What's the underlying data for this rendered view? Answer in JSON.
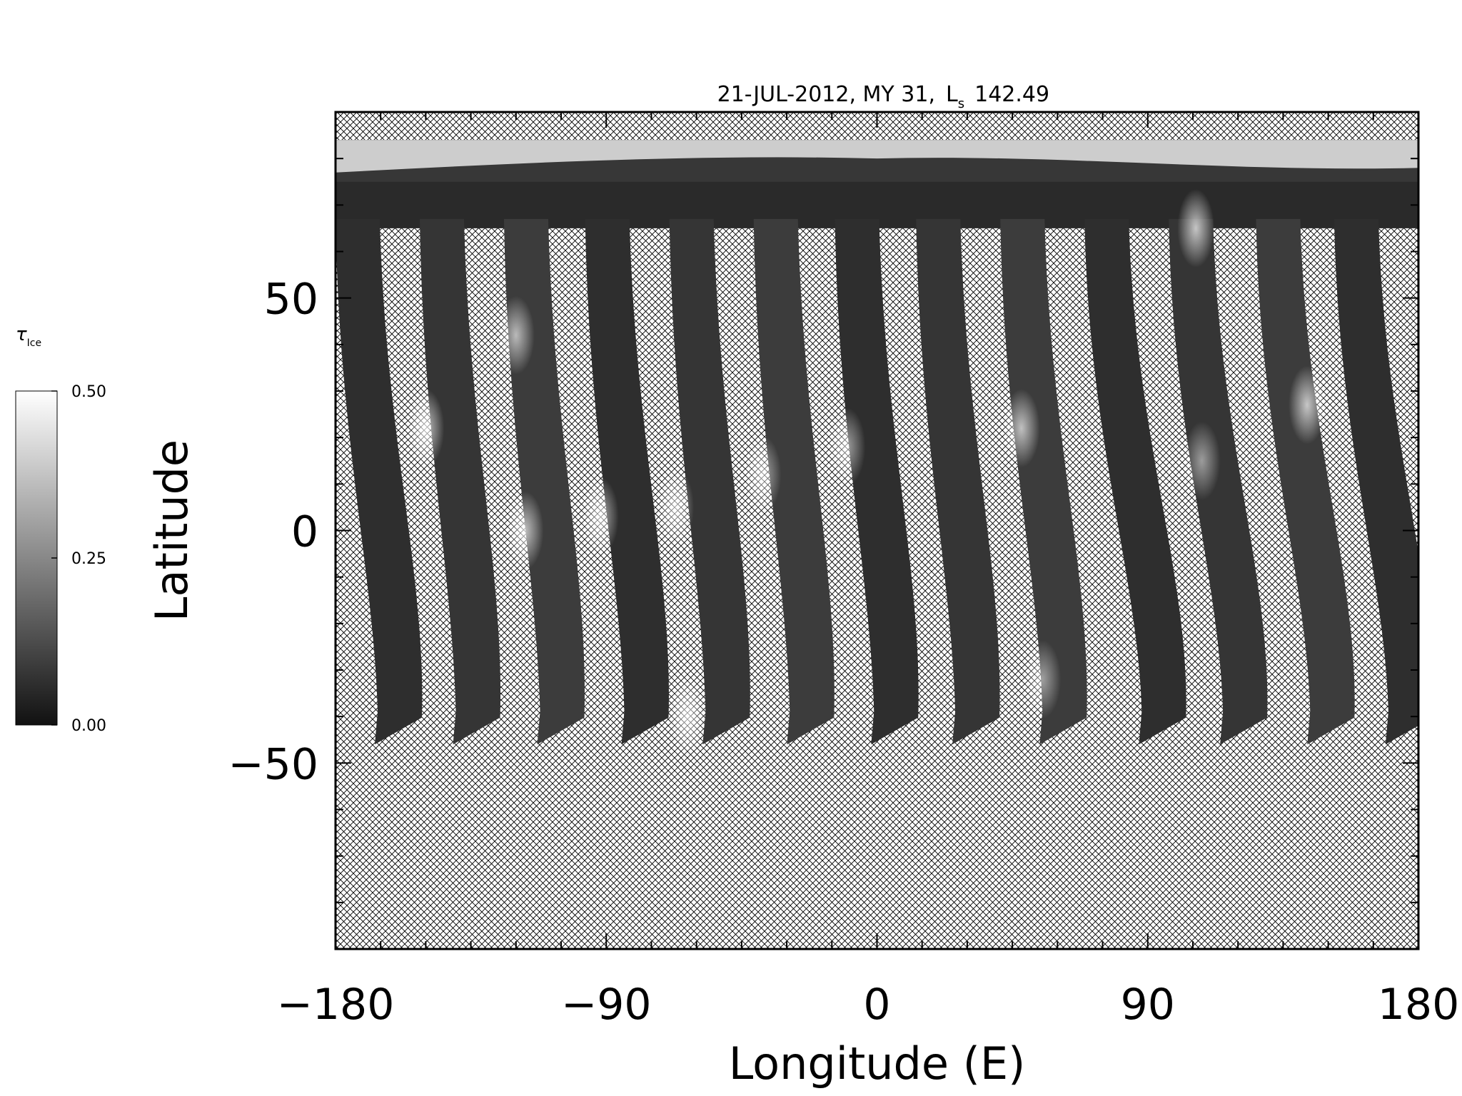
{
  "chart_data": {
    "type": "heatmap",
    "title": "21-JUL-2012, MY 31,",
    "title_ls_prefix": "L",
    "title_ls_sub": "s",
    "title_ls_value": "142.49",
    "xlabel": "Longitude (E)",
    "ylabel": "Latitude",
    "xlim": [
      -180,
      180
    ],
    "ylim": [
      -90,
      90
    ],
    "x_ticks": [
      -180,
      -90,
      0,
      90,
      180
    ],
    "x_tick_labels": [
      "−180",
      "−90",
      "0",
      "90",
      "180"
    ],
    "y_ticks": [
      -50,
      0,
      50
    ],
    "y_tick_labels": [
      "−50",
      "0",
      "50"
    ],
    "x_minor_step": 15,
    "y_minor_step": 10,
    "no_data_pattern": "crosshatch",
    "colorbar": {
      "label": "τ",
      "label_sub": "Ice",
      "min": 0.0,
      "max": 0.5,
      "ticks": [
        0.0,
        0.25,
        0.5
      ],
      "tick_labels": [
        "0.00",
        "0.25",
        "0.50"
      ],
      "colormap": "grayscale",
      "color_low": "#111111",
      "color_high": "#ffffff"
    },
    "polar_cap_band": {
      "lat_top": 84,
      "lat_bottom": 75,
      "tau": 0.45
    },
    "north_band": {
      "lat_top": 84,
      "lat_bottom": 65
    },
    "swaths": [
      {
        "lon_top": -180,
        "lon_bottom": -166,
        "lat_bottom": -46
      },
      {
        "lon_top": -152,
        "lon_bottom": -140,
        "lat_bottom": -46
      },
      {
        "lon_top": -124,
        "lon_bottom": -112,
        "lat_bottom": -46
      },
      {
        "lon_top": -97,
        "lon_bottom": -84,
        "lat_bottom": -46
      },
      {
        "lon_top": -69,
        "lon_bottom": -57,
        "lat_bottom": -46
      },
      {
        "lon_top": -41,
        "lon_bottom": -29,
        "lat_bottom": -46
      },
      {
        "lon_top": -14,
        "lon_bottom": -1,
        "lat_bottom": -46
      },
      {
        "lon_top": 13,
        "lon_bottom": 26,
        "lat_bottom": -46
      },
      {
        "lon_top": 41,
        "lon_bottom": 55,
        "lat_bottom": -46
      },
      {
        "lon_top": 69,
        "lon_bottom": 88,
        "lat_bottom": -46
      },
      {
        "lon_top": 97,
        "lon_bottom": 115,
        "lat_bottom": -46
      },
      {
        "lon_top": 126,
        "lon_bottom": 144,
        "lat_bottom": -46
      },
      {
        "lon_top": 152,
        "lon_bottom": 170,
        "lat_bottom": -46
      }
    ],
    "bright_features": [
      {
        "lon": -150,
        "lat": 22,
        "tau": 0.42
      },
      {
        "lon": -120,
        "lat": 42,
        "tau": 0.38
      },
      {
        "lon": -117,
        "lat": 0,
        "tau": 0.4
      },
      {
        "lon": -92,
        "lat": 3,
        "tau": 0.36
      },
      {
        "lon": -67,
        "lat": 5,
        "tau": 0.35
      },
      {
        "lon": -38,
        "lat": 12,
        "tau": 0.33
      },
      {
        "lon": -10,
        "lat": 18,
        "tau": 0.32
      },
      {
        "lon": 48,
        "lat": 22,
        "tau": 0.4
      },
      {
        "lon": 143,
        "lat": 27,
        "tau": 0.42
      },
      {
        "lon": 108,
        "lat": 15,
        "tau": 0.3
      },
      {
        "lon": 106,
        "lat": 65,
        "tau": 0.42
      },
      {
        "lon": -63,
        "lat": -40,
        "tau": 0.38
      },
      {
        "lon": 55,
        "lat": -32,
        "tau": 0.3
      }
    ]
  }
}
